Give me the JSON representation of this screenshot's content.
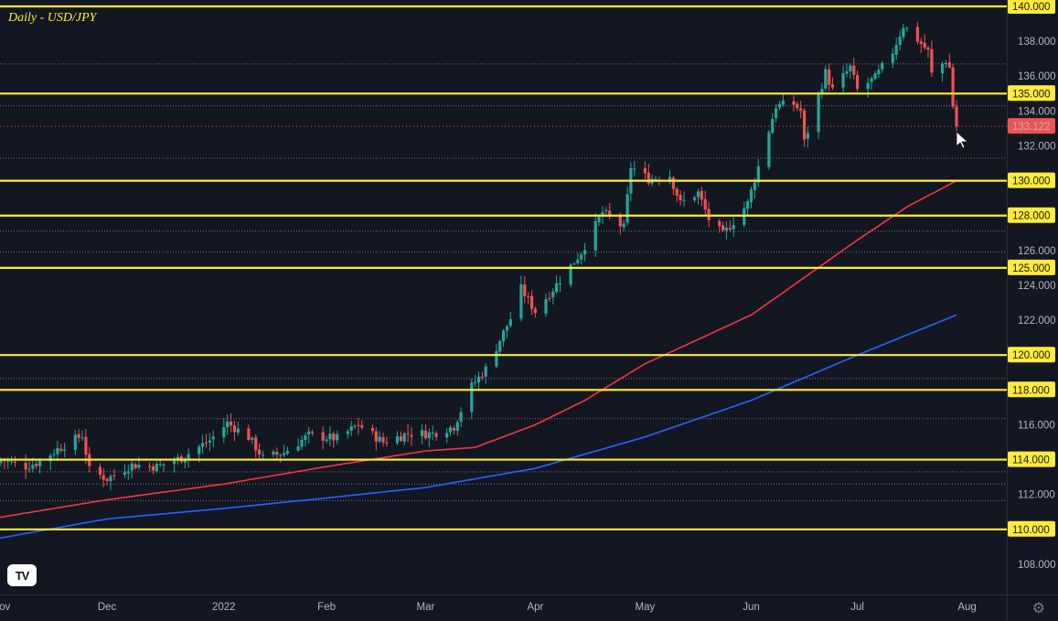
{
  "chart_data": {
    "type": "candlestick",
    "title": "Daily - USD/JPY",
    "symbol": "USD/JPY",
    "timeframe": "Daily",
    "ylim": [
      106.6,
      140.7
    ],
    "y_ticks": [
      108,
      110,
      112,
      114,
      116,
      118,
      120,
      122,
      124,
      125,
      126,
      128,
      130,
      132,
      133.122,
      134,
      135,
      136,
      138,
      140
    ],
    "y_tick_labels": [
      "108.000",
      "110.000",
      "112.000",
      "114.000",
      "116.000",
      "118.000",
      "120.000",
      "122.000",
      "124.000",
      "125.000",
      "126.000",
      "128.000",
      "130.000",
      "132.000",
      "133.122",
      "134.000",
      "135.000",
      "136.000",
      "138.000",
      "140.000"
    ],
    "x_tick_labels": [
      "Nov",
      "Dec",
      "2022",
      "Feb",
      "Mar",
      "Apr",
      "May",
      "Jun",
      "Jul",
      "Aug"
    ],
    "x_ticks": [
      "2021-11-01",
      "2021-12-01",
      "2022-01-03",
      "2022-02-01",
      "2022-03-01",
      "2022-04-01",
      "2022-05-02",
      "2022-06-01",
      "2022-07-01",
      "2022-08-01"
    ],
    "first_date": "2021-11-01",
    "last_date": "2022-07-29",
    "last_price": 133.122,
    "support_resistance_levels": [
      140,
      135,
      130,
      128,
      125,
      120,
      118,
      114,
      110
    ],
    "minor_levels": [
      136.7,
      134.3,
      131.3,
      127.1,
      125.9,
      118.65,
      116.35,
      113.3,
      112.6,
      111.65
    ],
    "close_anchors": [
      [
        "2021-11-01",
        114.0
      ],
      [
        "2021-11-08",
        113.6
      ],
      [
        "2021-11-12",
        113.9
      ],
      [
        "2021-11-17",
        114.6
      ],
      [
        "2021-11-24",
        115.4
      ],
      [
        "2021-11-26",
        113.4
      ],
      [
        "2021-12-01",
        112.9
      ],
      [
        "2021-12-08",
        113.7
      ],
      [
        "2021-12-15",
        113.6
      ],
      [
        "2021-12-22",
        114.1
      ],
      [
        "2021-12-30",
        115.1
      ],
      [
        "2022-01-04",
        116.1
      ],
      [
        "2022-01-10",
        115.3
      ],
      [
        "2022-01-14",
        114.1
      ],
      [
        "2022-01-20",
        114.4
      ],
      [
        "2022-01-27",
        115.4
      ],
      [
        "2022-02-04",
        115.2
      ],
      [
        "2022-02-10",
        116.0
      ],
      [
        "2022-02-17",
        115.0
      ],
      [
        "2022-02-24",
        115.5
      ],
      [
        "2022-03-03",
        115.5
      ],
      [
        "2022-03-09",
        115.9
      ],
      [
        "2022-03-14",
        118.2
      ],
      [
        "2022-03-18",
        119.2
      ],
      [
        "2022-03-25",
        122.1
      ],
      [
        "2022-03-28",
        123.8
      ],
      [
        "2022-04-01",
        122.5
      ],
      [
        "2022-04-08",
        124.3
      ],
      [
        "2022-04-14",
        125.9
      ],
      [
        "2022-04-20",
        128.2
      ],
      [
        "2022-04-26",
        127.3
      ],
      [
        "2022-04-28",
        130.8
      ],
      [
        "2022-05-03",
        130.1
      ],
      [
        "2022-05-09",
        130.3
      ],
      [
        "2022-05-12",
        128.7
      ],
      [
        "2022-05-17",
        129.3
      ],
      [
        "2022-05-20",
        127.8
      ],
      [
        "2022-05-24",
        126.9
      ],
      [
        "2022-05-31",
        128.7
      ],
      [
        "2022-06-03",
        130.8
      ],
      [
        "2022-06-08",
        134.3
      ],
      [
        "2022-06-13",
        134.4
      ],
      [
        "2022-06-15",
        134.0
      ],
      [
        "2022-06-16",
        132.2
      ],
      [
        "2022-06-22",
        136.2
      ],
      [
        "2022-06-24",
        135.2
      ],
      [
        "2022-06-29",
        136.5
      ],
      [
        "2022-07-01",
        135.2
      ],
      [
        "2022-07-06",
        135.9
      ],
      [
        "2022-07-11",
        137.4
      ],
      [
        "2022-07-14",
        138.9
      ],
      [
        "2022-07-18",
        138.1
      ],
      [
        "2022-07-21",
        137.4
      ],
      [
        "2022-07-22",
        136.1
      ],
      [
        "2022-07-26",
        136.9
      ],
      [
        "2022-07-27",
        136.5
      ],
      [
        "2022-07-28",
        134.3
      ],
      [
        "2022-07-29",
        133.122
      ]
    ],
    "ma_slow_anchors": [
      [
        "2021-10-29",
        109.4
      ],
      [
        "2021-12-01",
        110.6
      ],
      [
        "2022-01-03",
        111.2
      ],
      [
        "2022-02-01",
        111.8
      ],
      [
        "2022-03-01",
        112.4
      ],
      [
        "2022-04-01",
        113.5
      ],
      [
        "2022-05-02",
        115.3
      ],
      [
        "2022-06-01",
        117.4
      ],
      [
        "2022-07-01",
        120.0
      ],
      [
        "2022-07-29",
        122.3
      ]
    ],
    "ma_fast_anchors": [
      [
        "2021-10-29",
        110.6
      ],
      [
        "2021-12-01",
        111.7
      ],
      [
        "2022-01-03",
        112.6
      ],
      [
        "2022-02-01",
        113.6
      ],
      [
        "2022-03-01",
        114.5
      ],
      [
        "2022-03-15",
        114.7
      ],
      [
        "2022-04-01",
        116.0
      ],
      [
        "2022-04-15",
        117.4
      ],
      [
        "2022-05-02",
        119.5
      ],
      [
        "2022-05-16",
        120.8
      ],
      [
        "2022-06-01",
        122.3
      ],
      [
        "2022-06-15",
        124.3
      ],
      [
        "2022-07-01",
        126.6
      ],
      [
        "2022-07-15",
        128.5
      ],
      [
        "2022-07-29",
        130.0
      ]
    ],
    "colors": {
      "background": "#131722",
      "up": "#26A69A",
      "down": "#EF5350",
      "level": "#FFEB3B",
      "ma_fast": "#F23645",
      "ma_slow": "#2962FF",
      "minor_level": "#C8CAD0",
      "axis_text": "#B2B5BE",
      "price_label_bg": "#EF5350"
    },
    "grid": false,
    "legend": "none"
  },
  "branding": {
    "logo_text": "TV"
  },
  "settings_icon": "gear-icon"
}
